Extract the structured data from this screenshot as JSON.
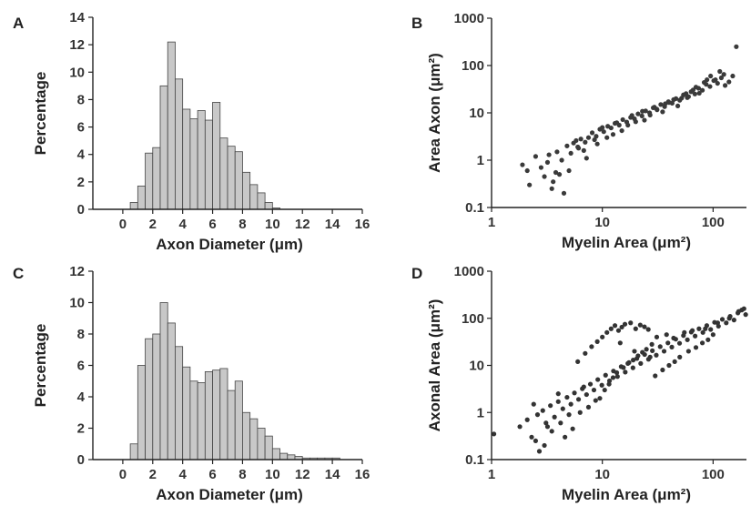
{
  "chart_data": [
    {
      "panel": "A",
      "type": "bar",
      "xlabel": "Axon Diameter (μm)",
      "ylabel": "Percentage",
      "xlim": [
        -2,
        16
      ],
      "ylim": [
        0,
        14
      ],
      "xticks": [
        "0",
        "2",
        "4",
        "6",
        "8",
        "10",
        "12",
        "14",
        "16"
      ],
      "yticks": [
        "0",
        "2",
        "4",
        "6",
        "8",
        "10",
        "12",
        "14"
      ],
      "bin_width": 0.5,
      "bin_starts": [
        0.5,
        1.0,
        1.5,
        2.0,
        2.5,
        3.0,
        3.5,
        4.0,
        4.5,
        5.0,
        5.5,
        6.0,
        6.5,
        7.0,
        7.5,
        8.0,
        8.5,
        9.0,
        9.5,
        10.0
      ],
      "values": [
        0.5,
        1.7,
        4.1,
        4.5,
        9.0,
        12.2,
        9.5,
        7.3,
        6.6,
        7.2,
        6.5,
        7.8,
        5.2,
        4.6,
        4.2,
        2.7,
        1.8,
        1.2,
        0.5,
        0.1
      ],
      "color": "#c8c8c8"
    },
    {
      "panel": "B",
      "type": "scatter",
      "xlabel": "Myelin Area (μm²)",
      "ylabel": "Area Axon (μm²)",
      "xscale": "log",
      "yscale": "log",
      "xlim": [
        1,
        200
      ],
      "ylim": [
        0.1,
        1000
      ],
      "xticks": [
        "1",
        "10",
        "100"
      ],
      "yticks": [
        "0.1",
        "1",
        "10",
        "100",
        "1000"
      ],
      "x": [
        1.9,
        2.1,
        2.5,
        3.0,
        3.2,
        3.6,
        3.9,
        4.3,
        4.8,
        5.2,
        5.5,
        6.0,
        6.4,
        7.0,
        7.5,
        8.1,
        8.8,
        9.5,
        10.3,
        11.2,
        12.0,
        13.0,
        14.2,
        15.3,
        16.6,
        18.0,
        19.5,
        21.0,
        22.8,
        24.6,
        26.7,
        28.8,
        31.2,
        33.7,
        36.5,
        39.5,
        42.7,
        46.2,
        50.0,
        54.0,
        58.5,
        63.3,
        68.5,
        74.0,
        80.0,
        86.6,
        93.7,
        101.4,
        109.7,
        118.7,
        128.4,
        139.0,
        150.4,
        162.0,
        3.5,
        5.0,
        7.2,
        9.0,
        12.5,
        15.0,
        20.0,
        27.0,
        35.0,
        48.0,
        60.0,
        75.0,
        95.0,
        115.0,
        4.1,
        6.8,
        8.5,
        11.0,
        17.0,
        24.0,
        31.0,
        40.0,
        52.0,
        70.0,
        88.0,
        2.8,
        3.3,
        4.5,
        5.8,
        6.1,
        10.0,
        13.5,
        18.5,
        23.0,
        29.5,
        37.0,
        44.0,
        57.0,
        66.0,
        83.0,
        105.0,
        125.0,
        2.2,
        3.8
      ],
      "y": [
        0.8,
        0.6,
        1.2,
        0.45,
        0.9,
        0.35,
        1.5,
        1.0,
        2.0,
        1.4,
        2.3,
        1.9,
        2.8,
        2.4,
        3.0,
        3.8,
        3.2,
        4.5,
        4.0,
        5.2,
        4.8,
        6.0,
        5.5,
        7.2,
        6.4,
        8.0,
        7.5,
        9.5,
        8.6,
        11.0,
        10.0,
        12.8,
        11.6,
        15.0,
        13.5,
        17.2,
        16.0,
        20.0,
        18.5,
        24.0,
        21.0,
        28.0,
        25.0,
        33.0,
        30.0,
        40.0,
        36.0,
        48.0,
        42.0,
        55.0,
        38.0,
        45.0,
        60.0,
        250.0,
        0.25,
        0.6,
        1.1,
        2.2,
        3.5,
        4.2,
        6.5,
        9.0,
        10.5,
        14.0,
        22.0,
        26.0,
        60.0,
        75.0,
        0.5,
        1.6,
        2.7,
        3.0,
        5.5,
        7.0,
        12.0,
        16.5,
        20.5,
        35.0,
        50.0,
        0.7,
        1.3,
        0.2,
        2.6,
        1.8,
        4.9,
        6.2,
        8.8,
        10.8,
        13.2,
        15.6,
        19.0,
        25.5,
        30.5,
        44.0,
        50.0,
        65.0,
        0.3,
        0.55
      ],
      "color": "#3a3a3a"
    },
    {
      "panel": "C",
      "type": "bar",
      "xlabel": "Axon Diameter (μm)",
      "ylabel": "Percentage",
      "xlim": [
        -2,
        16
      ],
      "ylim": [
        0,
        12
      ],
      "xticks": [
        "0",
        "2",
        "4",
        "6",
        "8",
        "10",
        "12",
        "14",
        "16"
      ],
      "yticks": [
        "0",
        "2",
        "4",
        "6",
        "8",
        "10",
        "12"
      ],
      "bin_width": 0.5,
      "bin_starts": [
        0.5,
        1.0,
        1.5,
        2.0,
        2.5,
        3.0,
        3.5,
        4.0,
        4.5,
        5.0,
        5.5,
        6.0,
        6.5,
        7.0,
        7.5,
        8.0,
        8.5,
        9.0,
        9.5,
        10.0,
        10.5,
        11.0,
        11.5,
        12.0,
        12.5,
        13.0,
        13.5,
        14.0
      ],
      "values": [
        1.0,
        6.0,
        7.7,
        8.0,
        10.0,
        8.7,
        7.2,
        5.9,
        5.0,
        4.9,
        5.6,
        5.7,
        5.8,
        4.4,
        5.0,
        3.0,
        2.6,
        2.0,
        1.5,
        0.7,
        0.4,
        0.3,
        0.2,
        0.1,
        0.1,
        0.1,
        0.1,
        0.1
      ],
      "color": "#c8c8c8"
    },
    {
      "panel": "D",
      "type": "scatter",
      "xlabel": "Myelin Area (μm²)",
      "ylabel": "Axonal Area (μm²)",
      "xscale": "log",
      "yscale": "log",
      "xlim": [
        1,
        200
      ],
      "ylim": [
        0.1,
        1000
      ],
      "xticks": [
        "1",
        "10",
        "100"
      ],
      "yticks": [
        "0.1",
        "1",
        "10",
        "100",
        "1000"
      ],
      "x": [
        1.05,
        1.8,
        2.1,
        2.3,
        2.6,
        2.9,
        3.1,
        3.4,
        3.7,
        4.0,
        4.4,
        4.8,
        5.2,
        5.6,
        6.1,
        6.6,
        7.2,
        7.8,
        8.4,
        9.1,
        9.9,
        10.7,
        11.6,
        12.6,
        13.7,
        14.8,
        16.1,
        17.4,
        18.9,
        20.5,
        22.2,
        24.1,
        26.1,
        28.3,
        30.7,
        33.3,
        36.1,
        39.1,
        42.4,
        46.0,
        49.8,
        54.0,
        58.6,
        63.5,
        68.8,
        74.6,
        80.9,
        87.7,
        95.1,
        103.1,
        111.8,
        121.2,
        131.4,
        142.4,
        154.4,
        167.4,
        181.5,
        196.8,
        6.0,
        7.0,
        8.0,
        9.0,
        10.0,
        11.0,
        12.0,
        13.0,
        14.0,
        15.0,
        16.0,
        18.0,
        20.0,
        22.0,
        24.0,
        26.0,
        9.5,
        10.5,
        11.5,
        12.5,
        13.5,
        15.5,
        17.0,
        19.0,
        21.0,
        23.0,
        25.0,
        28.0,
        30.0,
        35.0,
        40.0,
        45.0,
        50.0,
        60.0,
        70.0,
        80.0,
        90.0,
        100.0,
        3.0,
        3.5,
        4.2,
        5.0,
        2.5,
        2.7,
        3.2,
        4.6,
        5.4,
        6.3,
        7.5,
        8.7,
        31.0,
        38.0,
        44.0,
        55.0,
        65.0,
        85.0,
        110.0,
        140.0,
        170.0,
        190.0,
        2.4,
        4.0,
        6.8,
        14.5,
        19.5,
        27.0
      ],
      "y": [
        0.35,
        0.5,
        0.7,
        0.3,
        0.9,
        1.1,
        0.6,
        1.4,
        0.8,
        1.7,
        1.2,
        2.1,
        1.5,
        2.6,
        1.9,
        3.2,
        2.4,
        4.0,
        3.0,
        5.0,
        3.8,
        6.2,
        4.7,
        7.6,
        5.8,
        9.4,
        7.2,
        11.5,
        8.9,
        14.0,
        11.0,
        17.0,
        13.5,
        20.5,
        16.5,
        25.0,
        20.0,
        30.0,
        24.5,
        36.0,
        29.5,
        43.0,
        35.0,
        51.0,
        42.0,
        60.0,
        50.0,
        70.0,
        58.0,
        82.0,
        68.0,
        95.0,
        80.0,
        110.0,
        92.0,
        130.0,
        150.0,
        120.0,
        12.0,
        18.0,
        25.0,
        32.0,
        40.0,
        50.0,
        60.0,
        70.0,
        55.0,
        65.0,
        75.0,
        80.0,
        60.0,
        72.0,
        66.0,
        58.0,
        2.0,
        3.0,
        4.0,
        5.5,
        7.0,
        9.0,
        11.0,
        13.0,
        16.0,
        19.0,
        22.0,
        28.0,
        6.0,
        8.0,
        10.0,
        12.0,
        15.0,
        20.0,
        24.0,
        30.0,
        35.0,
        45.0,
        0.2,
        0.4,
        0.6,
        0.9,
        0.25,
        0.15,
        0.5,
        0.3,
        0.45,
        1.0,
        1.3,
        1.8,
        40.0,
        45.0,
        38.0,
        50.0,
        55.0,
        60.0,
        80.0,
        100.0,
        140.0,
        160.0,
        1.5,
        2.5,
        3.5,
        30.0,
        20.0,
        15.0
      ],
      "color": "#333333"
    }
  ],
  "panel_letters": [
    "A",
    "B",
    "C",
    "D"
  ]
}
